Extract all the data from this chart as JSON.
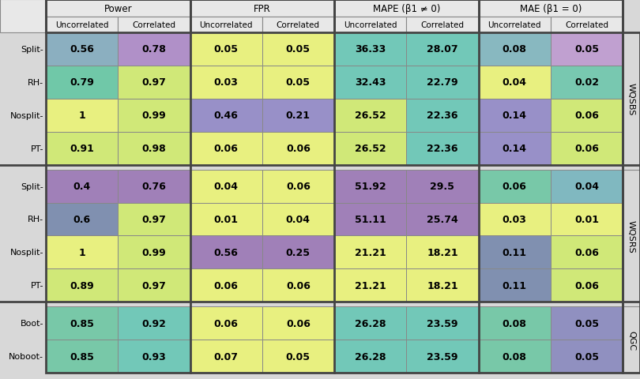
{
  "col_groups": [
    "Power",
    "FPR",
    "MAPE (β1 ≠ 0)",
    "MAE (β1 = 0)"
  ],
  "col_subheaders": [
    "Uncorrelated",
    "Correlated",
    "Uncorrelated",
    "Correlated",
    "Uncorrelated",
    "Correlated",
    "Uncorrelated",
    "Correlated"
  ],
  "row_groups": [
    "WQSBS",
    "WQSRS",
    "QGC"
  ],
  "row_labels": [
    "Split",
    "RH",
    "Nosplit",
    "PT",
    "Split",
    "RH",
    "Nosplit",
    "PT",
    "Boot",
    "Noboot"
  ],
  "values": [
    [
      "0.56",
      "0.78",
      "0.05",
      "0.05",
      "36.33",
      "28.07",
      "0.08",
      "0.05"
    ],
    [
      "0.79",
      "0.97",
      "0.03",
      "0.05",
      "32.43",
      "22.79",
      "0.04",
      "0.02"
    ],
    [
      "1",
      "0.99",
      "0.46",
      "0.21",
      "26.52",
      "22.36",
      "0.14",
      "0.06"
    ],
    [
      "0.91",
      "0.98",
      "0.06",
      "0.06",
      "26.52",
      "22.36",
      "0.14",
      "0.06"
    ],
    [
      "0.4",
      "0.76",
      "0.04",
      "0.06",
      "51.92",
      "29.5",
      "0.06",
      "0.04"
    ],
    [
      "0.6",
      "0.97",
      "0.01",
      "0.04",
      "51.11",
      "25.74",
      "0.03",
      "0.01"
    ],
    [
      "1",
      "0.99",
      "0.56",
      "0.25",
      "21.21",
      "18.21",
      "0.11",
      "0.06"
    ],
    [
      "0.89",
      "0.97",
      "0.06",
      "0.06",
      "21.21",
      "18.21",
      "0.11",
      "0.06"
    ],
    [
      "0.85",
      "0.92",
      "0.06",
      "0.06",
      "26.28",
      "23.59",
      "0.08",
      "0.05"
    ],
    [
      "0.85",
      "0.93",
      "0.07",
      "0.05",
      "26.28",
      "23.59",
      "0.08",
      "0.05"
    ]
  ],
  "colors": [
    [
      "#8bafc0",
      "#b090c8",
      "#e8f080",
      "#e8f080",
      "#72c8b8",
      "#72c8b8",
      "#88b8c0",
      "#c0a0d0"
    ],
    [
      "#70c8a8",
      "#d0e878",
      "#e8f080",
      "#e8f080",
      "#72c8b8",
      "#72c8b8",
      "#e8f080",
      "#78c8b0"
    ],
    [
      "#e8f080",
      "#d0e878",
      "#9890c8",
      "#9890c8",
      "#d0e878",
      "#72c8b8",
      "#9890c8",
      "#d0e878"
    ],
    [
      "#d0e878",
      "#d0e878",
      "#e8f080",
      "#e8f080",
      "#d0e878",
      "#72c8b8",
      "#9890c8",
      "#d0e878"
    ],
    [
      "#a080b8",
      "#a080b8",
      "#e8f080",
      "#e8f080",
      "#a080b8",
      "#a080b8",
      "#78c8a8",
      "#80b8c0"
    ],
    [
      "#8090b0",
      "#d0e878",
      "#e8f080",
      "#e8f080",
      "#a080b8",
      "#a080b8",
      "#e8f080",
      "#e8f080"
    ],
    [
      "#e8f080",
      "#d0e878",
      "#a080b8",
      "#a080b8",
      "#e8f080",
      "#e8f080",
      "#8090b0",
      "#d0e878"
    ],
    [
      "#d0e878",
      "#d0e878",
      "#e8f080",
      "#e8f080",
      "#e8f080",
      "#e8f080",
      "#8090b0",
      "#d0e878"
    ],
    [
      "#78c8a8",
      "#72c8b8",
      "#e8f080",
      "#e8f080",
      "#72c8b8",
      "#72c8b8",
      "#78c8a8",
      "#9090c0"
    ],
    [
      "#78c8a8",
      "#72c8b8",
      "#e8f080",
      "#e8f080",
      "#72c8b8",
      "#72c8b8",
      "#78c8a8",
      "#9090c0"
    ]
  ],
  "bg_color": "#d8d8d8",
  "header_bg": "#e8e8e8",
  "border_thick": "#444444",
  "border_thin": "#888888",
  "text_color": "#000000",
  "font_size_header": 8.5,
  "font_size_subheader": 7.5,
  "font_size_cell": 9,
  "font_size_rowlabel": 8,
  "font_size_grouplabel": 8
}
